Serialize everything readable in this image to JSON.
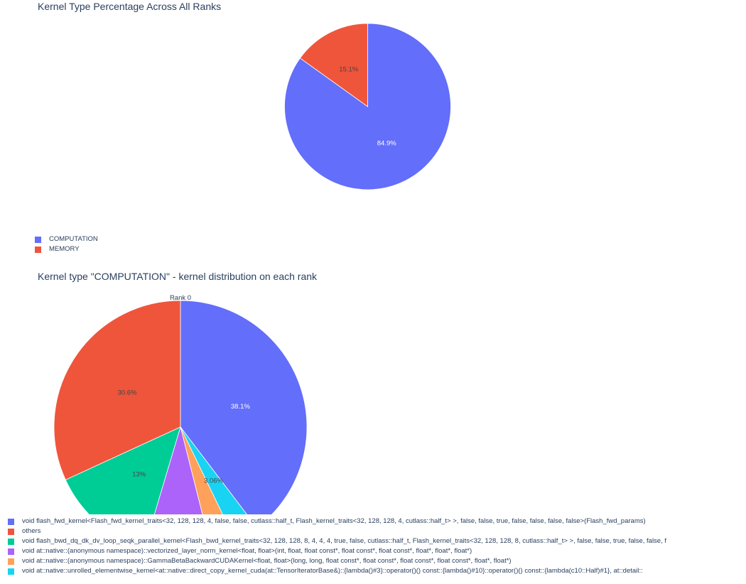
{
  "chart_data": [
    {
      "type": "pie",
      "title": "Kernel Type Percentage Across All Ranks",
      "labels": [
        "COMPUTATION",
        "MEMORY"
      ],
      "values": [
        84.9,
        15.1
      ],
      "text": [
        "84.9%",
        "15.1%"
      ],
      "colors": [
        "#636efa",
        "#EF553B"
      ],
      "legend_position": "bottom-left"
    },
    {
      "type": "pie",
      "title": "Kernel type \"COMPUTATION\" - kernel distribution on each rank",
      "subplot_title": "Rank 0",
      "labels": [
        "void flash_fwd_kernel<Flash_fwd_kernel_traits<32, 128, 128, 4, false, false, cutlass::half_t, Flash_kernel_traits<32, 128, 128, 4, cutlass::half_t> >, false, false, true, false, false, false, false>(Flash_fwd_params)",
        "others",
        "void flash_bwd_dq_dk_dv_loop_seqk_parallel_kernel<Flash_bwd_kernel_traits<32, 128, 128, 8, 4, 4, 4, true, false, cutlass::half_t, Flash_kernel_traits<32, 128, 128, 8, cutlass::half_t> >, false, false, true, false, false, f",
        "void at::native::(anonymous namespace)::vectorized_layer_norm_kernel<float, float>(int, float, float const*, float const*, float const*, float*, float*, float*)",
        "void at::native::(anonymous namespace)::GammaBetaBackwardCUDAKernel<float, float>(long, long, float const*, float const*, float const*, float const*, float*, float*)",
        "void at::native::unrolled_elementwise_kernel<at::native::direct_copy_kernel_cuda(at::TensorIteratorBase&)::{lambda()#3}::operator()() const::{lambda()#10}::operator()() const::{lambda(c10::Half)#1}, at::detail::"
      ],
      "values": [
        38.1,
        30.6,
        13.0,
        8.2,
        3.1,
        3.06
      ],
      "text": [
        "38.1%",
        "30.6%",
        "13%",
        "",
        "",
        "3.06%"
      ],
      "colors": [
        "#636efa",
        "#EF553B",
        "#00cc96",
        "#ab63fa",
        "#FFA15A",
        "#19d3f3"
      ],
      "slice_order": [
        0,
        5,
        4,
        3,
        2,
        1
      ],
      "legend_position": "bottom-left"
    }
  ]
}
